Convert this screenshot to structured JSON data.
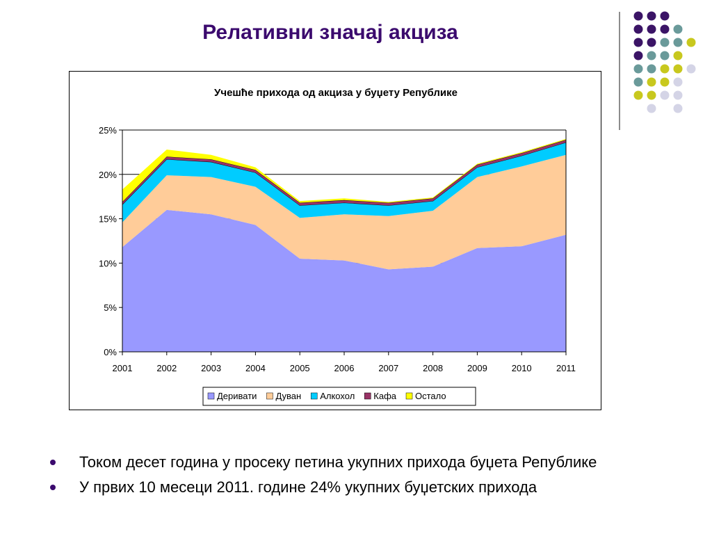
{
  "slide": {
    "title": "Релативни значај акциза",
    "bullets": [
      "Током десет година у просеку петина укупних прихода буџета Републике",
      "У првих 10 месеци 2011. године 24% укупних буџетских прихода"
    ]
  },
  "decoration": {
    "dot_colors": {
      "purple": "#3b1466",
      "teal": "#6a9a9a",
      "yellow": "#c8c81e",
      "lavender": "#d4d4e6"
    },
    "dot_grid": [
      [
        "purple",
        "purple",
        "purple",
        null,
        null
      ],
      [
        "purple",
        "purple",
        "purple",
        "teal",
        null
      ],
      [
        "purple",
        "purple",
        "teal",
        "teal",
        "yellow"
      ],
      [
        "purple",
        "teal",
        "teal",
        "yellow",
        null
      ],
      [
        "teal",
        "teal",
        "yellow",
        "yellow",
        "lavender"
      ],
      [
        "teal",
        "yellow",
        "yellow",
        "lavender",
        null
      ],
      [
        "yellow",
        "yellow",
        "lavender",
        "lavender",
        null
      ],
      [
        null,
        "lavender",
        null,
        "lavender",
        null
      ]
    ]
  },
  "chart_data": {
    "type": "area",
    "stacked": true,
    "title": "Учешће прихода од акциза у буџету Републике",
    "x": [
      "2001",
      "2002",
      "2003",
      "2004",
      "2005",
      "2006",
      "2007",
      "2008",
      "2009",
      "2010",
      "2011"
    ],
    "ylim": [
      0,
      25
    ],
    "yticks": [
      0,
      5,
      10,
      15,
      20,
      25
    ],
    "ytick_labels": [
      "0%",
      "5%",
      "10%",
      "15%",
      "20%",
      "25%"
    ],
    "grid": true,
    "legend_position": "bottom",
    "series": [
      {
        "name": "Деривати",
        "color": "#9999ff",
        "values": [
          11.8,
          16.0,
          15.5,
          14.3,
          10.5,
          10.3,
          9.3,
          9.6,
          11.7,
          11.9,
          13.2
        ]
      },
      {
        "name": "Дуван",
        "color": "#ffcc99",
        "values": [
          2.8,
          3.9,
          4.2,
          4.3,
          4.6,
          5.2,
          6.0,
          6.3,
          8.0,
          9.0,
          9.0
        ]
      },
      {
        "name": "Алкохол",
        "color": "#00ccff",
        "values": [
          2.0,
          1.8,
          1.7,
          1.6,
          1.4,
          1.3,
          1.2,
          1.1,
          1.1,
          1.2,
          1.4
        ]
      },
      {
        "name": "Кафа",
        "color": "#993366",
        "values": [
          0.3,
          0.3,
          0.3,
          0.3,
          0.3,
          0.3,
          0.3,
          0.3,
          0.3,
          0.3,
          0.3
        ]
      },
      {
        "name": "Остало",
        "color": "#ffff00",
        "values": [
          1.4,
          0.8,
          0.5,
          0.3,
          0.2,
          0.2,
          0.1,
          0.1,
          0.1,
          0.1,
          0.1
        ]
      }
    ]
  }
}
